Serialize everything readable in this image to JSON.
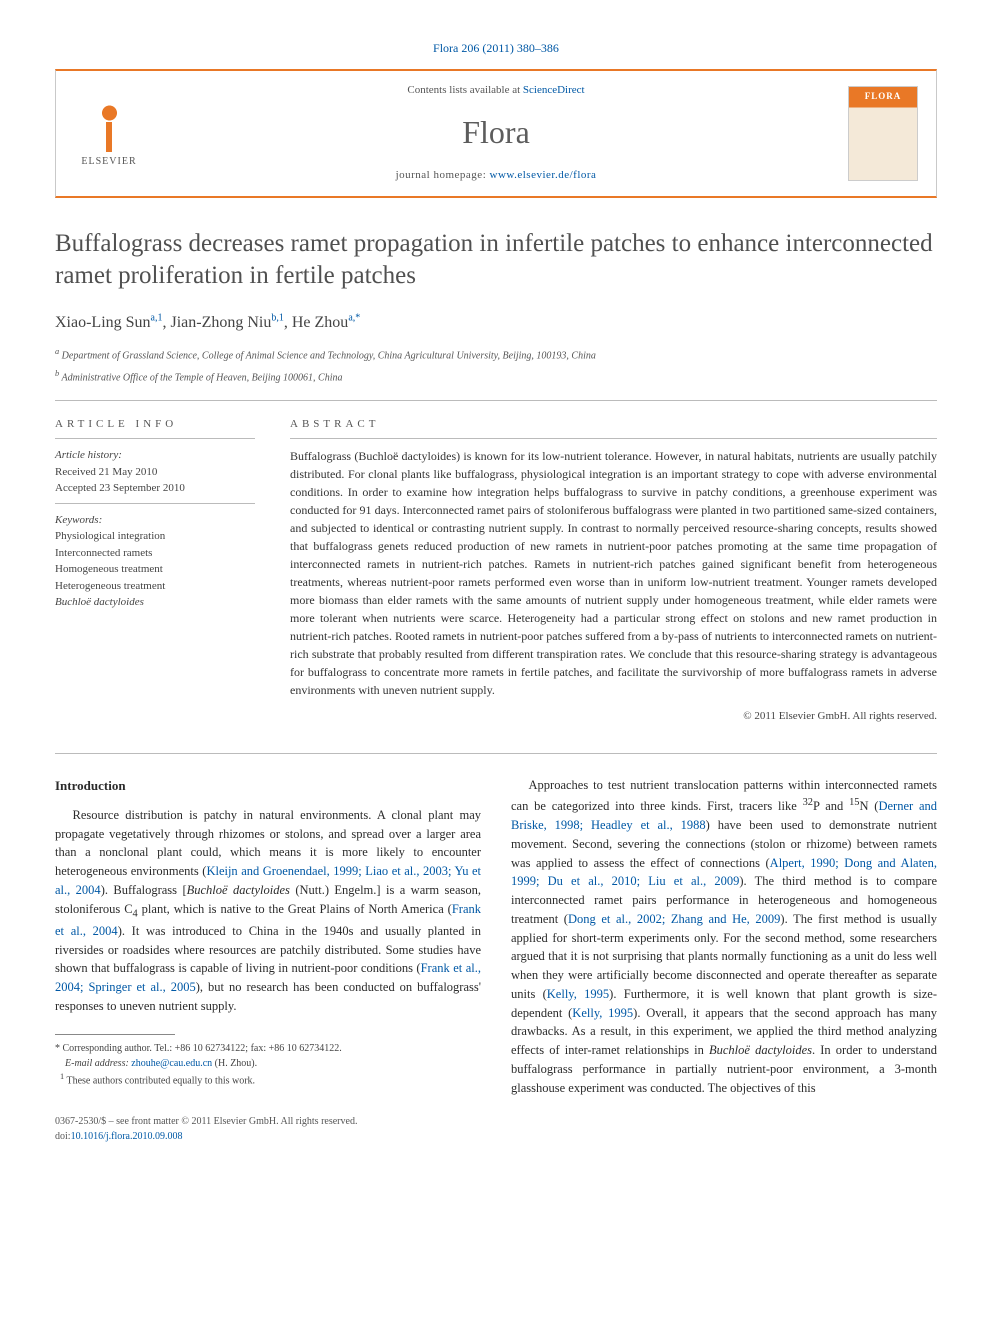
{
  "citation": "Flora 206 (2011) 380–386",
  "header": {
    "contents_prefix": "Contents lists available at ",
    "contents_link": "ScienceDirect",
    "journal": "Flora",
    "homepage_prefix": "journal homepage: ",
    "homepage_url": "www.elsevier.de/flora",
    "publisher": "ELSEVIER"
  },
  "title": "Buffalograss decreases ramet propagation in infertile patches to enhance interconnected ramet proliferation in fertile patches",
  "authors_html": "Xiao-Ling Sun<sup>a,1</sup>, Jian-Zhong Niu<sup>b,1</sup>, He Zhou<sup>a,*</sup>",
  "affiliations": {
    "a": "Department of Grassland Science, College of Animal Science and Technology, China Agricultural University, Beijing, 100193, China",
    "b": "Administrative Office of the Temple of Heaven, Beijing 100061, China"
  },
  "info": {
    "label": "ARTICLE INFO",
    "history_heading": "Article history:",
    "received": "Received 21 May 2010",
    "accepted": "Accepted 23 September 2010",
    "keywords_heading": "Keywords:",
    "keywords": [
      "Physiological integration",
      "Interconnected ramets",
      "Homogeneous treatment",
      "Heterogeneous treatment",
      "Buchloë dactyloides"
    ]
  },
  "abstract": {
    "label": "ABSTRACT",
    "text": "Buffalograss (Buchloë dactyloides) is known for its low-nutrient tolerance. However, in natural habitats, nutrients are usually patchily distributed. For clonal plants like buffalograss, physiological integration is an important strategy to cope with adverse environmental conditions. In order to examine how integration helps buffalograss to survive in patchy conditions, a greenhouse experiment was conducted for 91 days. Interconnected ramet pairs of stoloniferous buffalograss were planted in two partitioned same-sized containers, and subjected to identical or contrasting nutrient supply. In contrast to normally perceived resource-sharing concepts, results showed that buffalograss genets reduced production of new ramets in nutrient-poor patches promoting at the same time propagation of interconnected ramets in nutrient-rich patches. Ramets in nutrient-rich patches gained significant benefit from heterogeneous treatments, whereas nutrient-poor ramets performed even worse than in uniform low-nutrient treatment. Younger ramets developed more biomass than elder ramets with the same amounts of nutrient supply under homogeneous treatment, while elder ramets were more tolerant when nutrients were scarce. Heterogeneity had a particular strong effect on stolons and new ramet production in nutrient-rich patches. Rooted ramets in nutrient-poor patches suffered from a by-pass of nutrients to interconnected ramets on nutrient-rich substrate that probably resulted from different transpiration rates. We conclude that this resource-sharing strategy is advantageous for buffalograss to concentrate more ramets in fertile patches, and facilitate the survivorship of more buffalograss ramets in adverse environments with uneven nutrient supply.",
    "copyright": "© 2011 Elsevier GmbH. All rights reserved."
  },
  "body": {
    "intro_heading": "Introduction",
    "col1_p1": "Resource distribution is patchy in natural environments. A clonal plant may propagate vegetatively through rhizomes or stolons, and spread over a larger area than a nonclonal plant could, which means it is more likely to encounter heterogeneous environments (Kleijn and Groenendael, 1999; Liao et al., 2003; Yu et al., 2004). Buffalograss [Buchloë dactyloides (Nutt.) Engelm.] is a warm season, stoloniferous C4 plant, which is native to the Great Plains of North America (Frank et al., 2004). It was introduced to China in the 1940s and usually planted in riversides or roadsides where resources are patchily distributed. Some studies have shown that buffalograss is capable of living in nutrient-poor conditions (Frank et al., 2004; Springer et al., 2005), but no research has been conducted on buffalograss' responses to uneven nutrient supply.",
    "col2_p1": "Approaches to test nutrient translocation patterns within interconnected ramets can be categorized into three kinds. First, tracers like 32P and 15N (Derner and Briske, 1998; Headley et al., 1988) have been used to demonstrate nutrient movement. Second, severing the connections (stolon or rhizome) between ramets was applied to assess the effect of connections (Alpert, 1990; Dong and Alaten, 1999; Du et al., 2010; Liu et al., 2009). The third method is to compare interconnected ramet pairs performance in heterogeneous and homogeneous treatment (Dong et al., 2002; Zhang and He, 2009). The first method is usually applied for short-term experiments only. For the second method, some researchers argued that it is not surprising that plants normally functioning as a unit do less well when they were artificially become disconnected and operate thereafter as separate units (Kelly, 1995). Furthermore, it is well known that plant growth is size-dependent (Kelly, 1995). Overall, it appears that the second approach has many drawbacks. As a result, in this experiment, we applied the third method analyzing effects of inter-ramet relationships in Buchloë dactyloides. In order to understand buffalograss performance in partially nutrient-poor environment, a 3-month glasshouse experiment was conducted. The objectives of this"
  },
  "footnotes": {
    "corresponding": "* Corresponding author. Tel.: +86 10 62734122; fax: +86 10 62734122.",
    "email_label": "E-mail address: ",
    "email": "zhouhe@cau.edu.cn",
    "email_suffix": " (H. Zhou).",
    "equal": "1 These authors contributed equally to this work."
  },
  "footer": {
    "line1": "0367-2530/$ – see front matter © 2011 Elsevier GmbH. All rights reserved.",
    "doi_prefix": "doi:",
    "doi": "10.1016/j.flora.2010.09.008"
  },
  "colors": {
    "link": "#0058a5",
    "accent": "#e97826",
    "rule": "#bbbbbb",
    "text": "#333333"
  }
}
